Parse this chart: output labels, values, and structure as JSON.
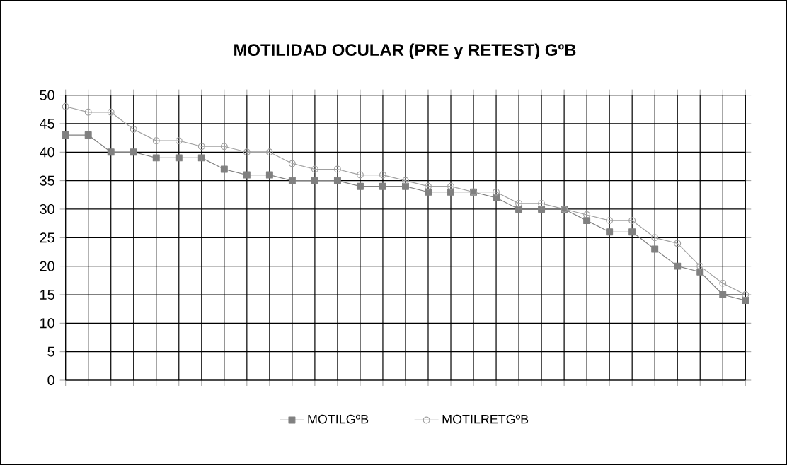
{
  "chart_data": {
    "type": "line",
    "title": "MOTILIDAD OCULAR (PRE y RETEST) GºB",
    "categories": [
      null,
      null,
      null,
      null,
      null,
      null,
      null,
      null,
      null,
      null,
      null,
      null,
      null,
      null,
      null,
      null,
      null,
      null,
      null,
      null,
      null,
      null,
      null,
      null,
      null,
      null,
      null,
      null,
      null,
      null,
      null
    ],
    "series": [
      {
        "name": "MOTILGºB",
        "color": "#808080",
        "marker": "square",
        "values": [
          43,
          43,
          40,
          40,
          39,
          39,
          39,
          37,
          36,
          36,
          35,
          35,
          35,
          34,
          34,
          34,
          33,
          33,
          33,
          32,
          30,
          30,
          30,
          28,
          26,
          26,
          23,
          20,
          19,
          15,
          14
        ]
      },
      {
        "name": "MOTILRETGºB",
        "color": "#a0a0a0",
        "marker": "circle",
        "values": [
          48,
          47,
          47,
          44,
          42,
          42,
          41,
          41,
          40,
          40,
          38,
          37,
          37,
          36,
          36,
          35,
          34,
          34,
          33,
          33,
          31,
          31,
          30,
          29,
          28,
          28,
          25,
          24,
          20,
          17,
          15
        ]
      }
    ],
    "ylim": [
      0,
      50
    ],
    "yticks": [
      0,
      5,
      10,
      15,
      20,
      25,
      30,
      35,
      40,
      45,
      50
    ],
    "grid": true,
    "legend": "bottom",
    "tick_labels": "y"
  }
}
